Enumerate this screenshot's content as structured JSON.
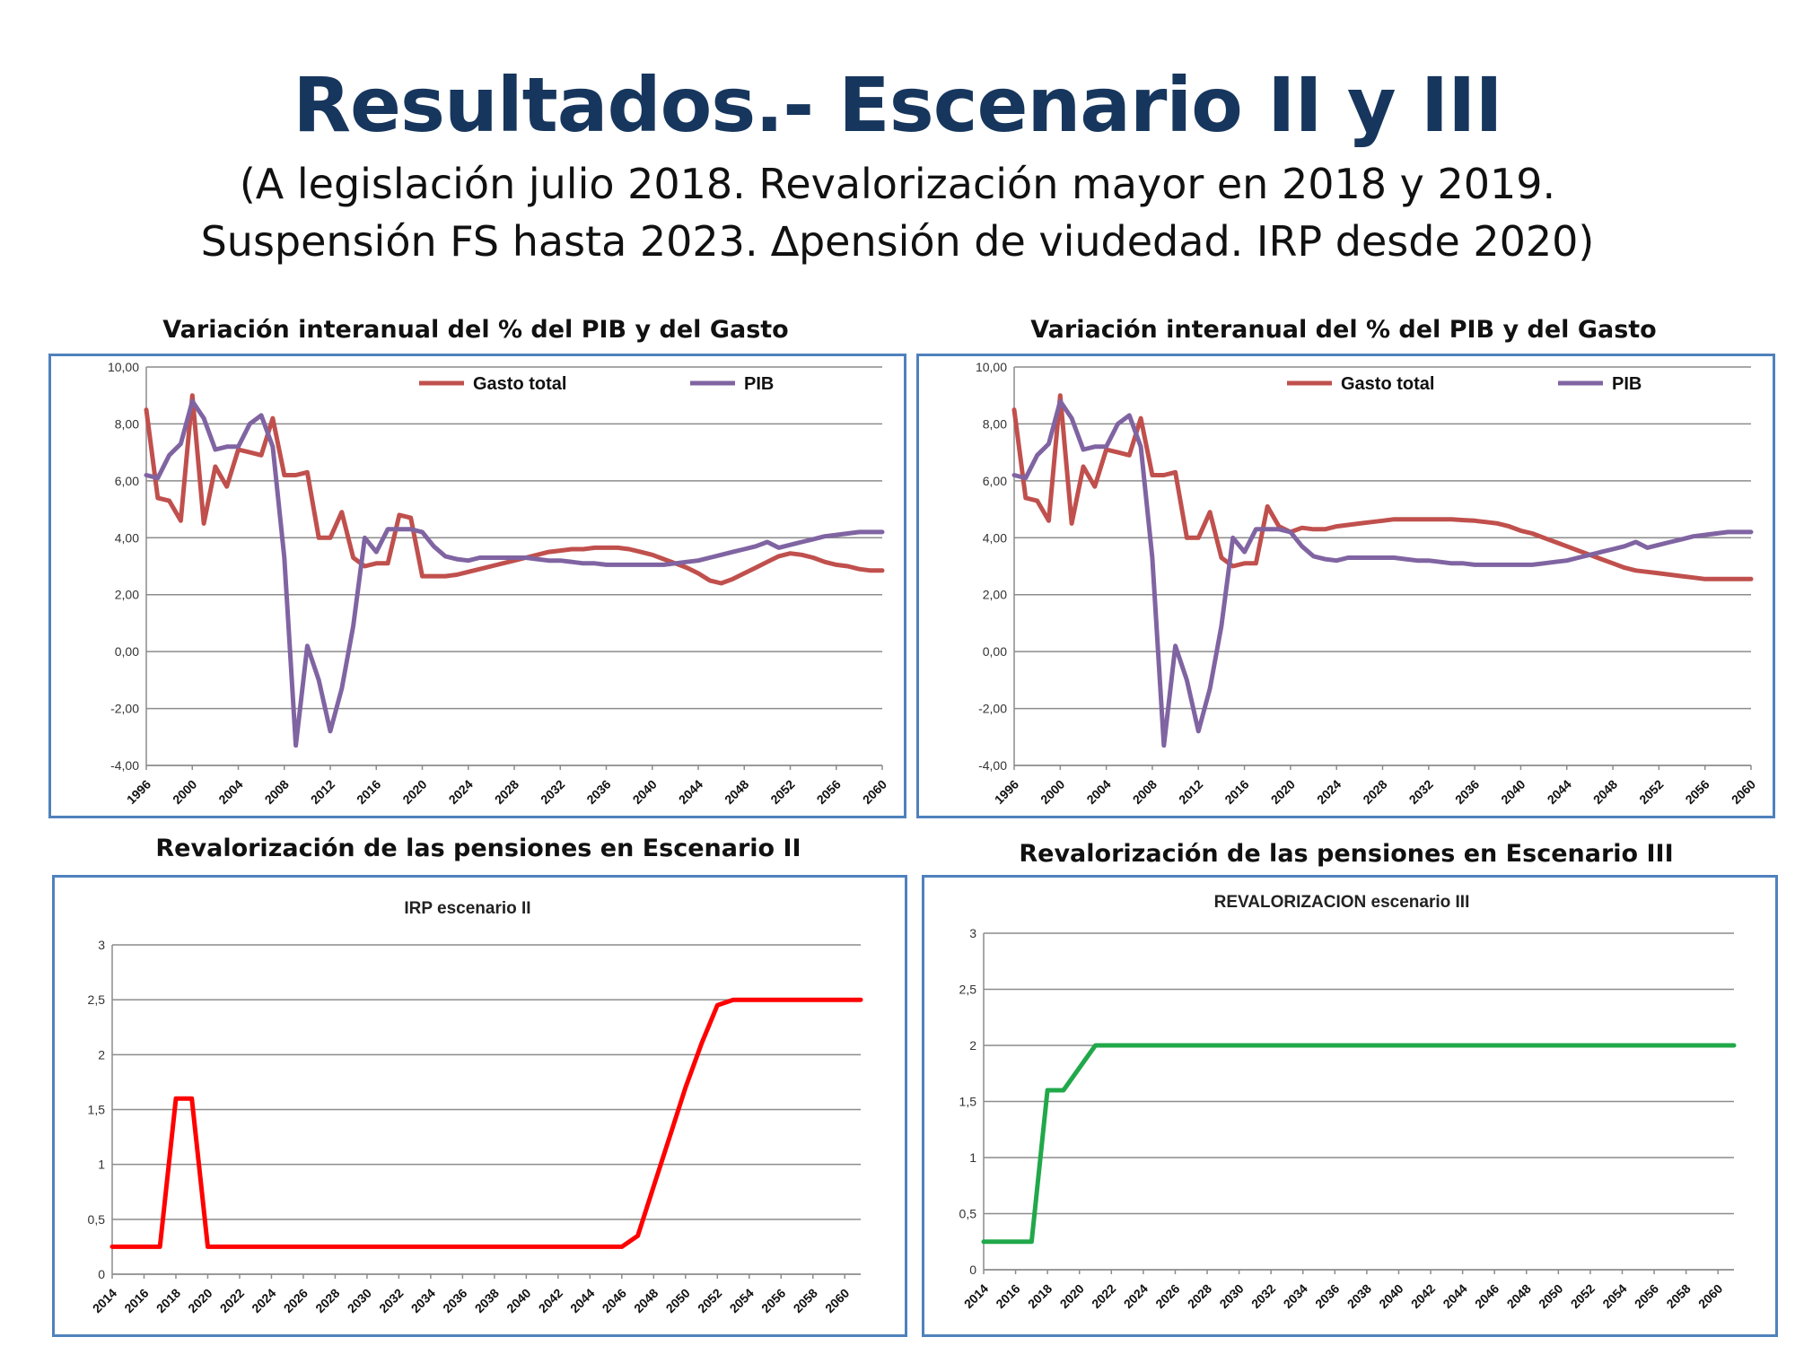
{
  "slide": {
    "title": "Resultados.- Escenario II y III",
    "subtitle_line1": "(A legislación julio 2018. Revalorización mayor en 2018 y 2019.",
    "subtitle_line2": "Suspensión FS hasta 2023. ∆pensión de viudedad. IRP desde 2020)"
  },
  "panels": {
    "tl_title": "Variación interanual del % del PIB y del Gasto",
    "tr_title": "Variación interanual del % del PIB y del Gasto",
    "bl_title": "Revalorización de las pensiones en Escenario II",
    "br_title": "Revalorización de las pensiones en Escenario III"
  },
  "colors": {
    "gasto": "#c0504d",
    "pib": "#8064a2",
    "irp": "#ff0000",
    "reval": "#21a84a",
    "grid": "#8c8c8c",
    "border": "#4f81bd"
  },
  "chart_data": [
    {
      "type": "line",
      "ylim": [
        -4,
        10
      ],
      "yticks": [
        "-4,00",
        "-2,00",
        "0,00",
        "2,00",
        "4,00",
        "6,00",
        "8,00",
        "10,00"
      ],
      "xticks": [
        "1996",
        "2000",
        "2004",
        "2008",
        "2012",
        "2016",
        "2020",
        "2024",
        "2028",
        "2032",
        "2036",
        "2040",
        "2044",
        "2048",
        "2052",
        "2056",
        "2060"
      ],
      "x": [
        1996,
        1997,
        1998,
        1999,
        2000,
        2001,
        2002,
        2003,
        2004,
        2005,
        2006,
        2007,
        2008,
        2009,
        2010,
        2011,
        2012,
        2013,
        2014,
        2015,
        2016,
        2017,
        2018,
        2019,
        2020,
        2021,
        2022,
        2023,
        2024,
        2025,
        2026,
        2027,
        2028,
        2029,
        2030,
        2031,
        2032,
        2033,
        2034,
        2035,
        2036,
        2037,
        2038,
        2039,
        2040,
        2041,
        2042,
        2043,
        2044,
        2045,
        2046,
        2047,
        2048,
        2049,
        2050,
        2051,
        2052,
        2053,
        2054,
        2055,
        2056,
        2057,
        2058,
        2059,
        2060
      ],
      "series": [
        {
          "name": "Gasto total",
          "values": [
            8.5,
            5.4,
            5.3,
            4.6,
            9.0,
            4.5,
            6.5,
            5.8,
            7.1,
            7.0,
            6.9,
            8.2,
            6.2,
            6.2,
            6.3,
            4.0,
            4.0,
            4.9,
            3.3,
            3.0,
            3.1,
            3.1,
            4.8,
            4.7,
            2.65,
            2.65,
            2.65,
            2.7,
            2.8,
            2.9,
            3.0,
            3.1,
            3.2,
            3.3,
            3.4,
            3.5,
            3.55,
            3.6,
            3.6,
            3.65,
            3.65,
            3.65,
            3.6,
            3.5,
            3.4,
            3.25,
            3.1,
            2.95,
            2.75,
            2.5,
            2.4,
            2.55,
            2.75,
            2.95,
            3.15,
            3.35,
            3.45,
            3.4,
            3.3,
            3.15,
            3.05,
            3.0,
            2.9,
            2.85,
            2.85
          ]
        },
        {
          "name": "PIB",
          "values": [
            6.2,
            6.1,
            6.9,
            7.3,
            8.8,
            8.2,
            7.1,
            7.2,
            7.2,
            8.0,
            8.3,
            7.2,
            3.3,
            -3.3,
            0.2,
            -1.0,
            -2.8,
            -1.3,
            0.9,
            4.0,
            3.5,
            4.3,
            4.3,
            4.3,
            4.2,
            3.7,
            3.35,
            3.25,
            3.2,
            3.3,
            3.3,
            3.3,
            3.3,
            3.3,
            3.25,
            3.2,
            3.2,
            3.15,
            3.1,
            3.1,
            3.05,
            3.05,
            3.05,
            3.05,
            3.05,
            3.05,
            3.1,
            3.15,
            3.2,
            3.3,
            3.4,
            3.5,
            3.6,
            3.7,
            3.85,
            3.65,
            3.75,
            3.85,
            3.95,
            4.05,
            4.1,
            4.15,
            4.2,
            4.2,
            4.2
          ]
        }
      ]
    },
    {
      "type": "line",
      "ylim": [
        -4,
        10
      ],
      "yticks": [
        "-4,00",
        "-2,00",
        "0,00",
        "2,00",
        "4,00",
        "6,00",
        "8,00",
        "10,00"
      ],
      "xticks": [
        "1996",
        "2000",
        "2004",
        "2008",
        "2012",
        "2016",
        "2020",
        "2024",
        "2028",
        "2032",
        "2036",
        "2040",
        "2044",
        "2048",
        "2052",
        "2056",
        "2060"
      ],
      "x": [
        1996,
        1997,
        1998,
        1999,
        2000,
        2001,
        2002,
        2003,
        2004,
        2005,
        2006,
        2007,
        2008,
        2009,
        2010,
        2011,
        2012,
        2013,
        2014,
        2015,
        2016,
        2017,
        2018,
        2019,
        2020,
        2021,
        2022,
        2023,
        2024,
        2025,
        2026,
        2027,
        2028,
        2029,
        2030,
        2031,
        2032,
        2033,
        2034,
        2035,
        2036,
        2037,
        2038,
        2039,
        2040,
        2041,
        2042,
        2043,
        2044,
        2045,
        2046,
        2047,
        2048,
        2049,
        2050,
        2051,
        2052,
        2053,
        2054,
        2055,
        2056,
        2057,
        2058,
        2059,
        2060
      ],
      "series": [
        {
          "name": "Gasto total",
          "values": [
            8.5,
            5.4,
            5.3,
            4.6,
            9.0,
            4.5,
            6.5,
            5.8,
            7.1,
            7.0,
            6.9,
            8.2,
            6.2,
            6.2,
            6.3,
            4.0,
            4.0,
            4.9,
            3.3,
            3.0,
            3.1,
            3.1,
            5.1,
            4.4,
            4.2,
            4.35,
            4.3,
            4.3,
            4.4,
            4.45,
            4.5,
            4.55,
            4.6,
            4.65,
            4.65,
            4.65,
            4.65,
            4.65,
            4.65,
            4.62,
            4.6,
            4.55,
            4.5,
            4.4,
            4.25,
            4.15,
            4.0,
            3.85,
            3.7,
            3.55,
            3.4,
            3.25,
            3.1,
            2.95,
            2.85,
            2.8,
            2.75,
            2.7,
            2.65,
            2.6,
            2.55,
            2.55,
            2.55,
            2.55,
            2.55
          ]
        },
        {
          "name": "PIB",
          "values": [
            6.2,
            6.1,
            6.9,
            7.3,
            8.8,
            8.2,
            7.1,
            7.2,
            7.2,
            8.0,
            8.3,
            7.2,
            3.3,
            -3.3,
            0.2,
            -1.0,
            -2.8,
            -1.3,
            0.9,
            4.0,
            3.5,
            4.3,
            4.3,
            4.3,
            4.2,
            3.7,
            3.35,
            3.25,
            3.2,
            3.3,
            3.3,
            3.3,
            3.3,
            3.3,
            3.25,
            3.2,
            3.2,
            3.15,
            3.1,
            3.1,
            3.05,
            3.05,
            3.05,
            3.05,
            3.05,
            3.05,
            3.1,
            3.15,
            3.2,
            3.3,
            3.4,
            3.5,
            3.6,
            3.7,
            3.85,
            3.65,
            3.75,
            3.85,
            3.95,
            4.05,
            4.1,
            4.15,
            4.2,
            4.2,
            4.2
          ]
        }
      ]
    },
    {
      "type": "line",
      "title": "IRP escenario II",
      "ylim": [
        0,
        3
      ],
      "yticks": [
        "0",
        "0,5",
        "1",
        "1,5",
        "2",
        "2,5",
        "3"
      ],
      "xticks": [
        "2014",
        "2016",
        "2018",
        "2020",
        "2022",
        "2024",
        "2026",
        "2028",
        "2030",
        "2032",
        "2034",
        "2036",
        "2038",
        "2040",
        "2042",
        "2044",
        "2046",
        "2048",
        "2050",
        "2052",
        "2054",
        "2056",
        "2058",
        "2060"
      ],
      "x": [
        2014,
        2015,
        2016,
        2017,
        2018,
        2019,
        2020,
        2021,
        2022,
        2023,
        2024,
        2025,
        2026,
        2027,
        2028,
        2029,
        2030,
        2031,
        2032,
        2033,
        2034,
        2035,
        2036,
        2037,
        2038,
        2039,
        2040,
        2041,
        2042,
        2043,
        2044,
        2045,
        2046,
        2047,
        2048,
        2049,
        2050,
        2051,
        2052,
        2053,
        2054,
        2055,
        2056,
        2057,
        2058,
        2059,
        2060,
        2061
      ],
      "series": [
        {
          "name": "IRP",
          "values": [
            0.25,
            0.25,
            0.25,
            0.25,
            1.6,
            1.6,
            0.25,
            0.25,
            0.25,
            0.25,
            0.25,
            0.25,
            0.25,
            0.25,
            0.25,
            0.25,
            0.25,
            0.25,
            0.25,
            0.25,
            0.25,
            0.25,
            0.25,
            0.25,
            0.25,
            0.25,
            0.25,
            0.25,
            0.25,
            0.25,
            0.25,
            0.25,
            0.25,
            0.35,
            0.8,
            1.25,
            1.7,
            2.1,
            2.45,
            2.5,
            2.5,
            2.5,
            2.5,
            2.5,
            2.5,
            2.5,
            2.5,
            2.5
          ]
        }
      ]
    },
    {
      "type": "line",
      "title": "REVALORIZACION escenario  III",
      "ylim": [
        0,
        3
      ],
      "yticks": [
        "0",
        "0,5",
        "1",
        "1,5",
        "2",
        "2,5",
        "3"
      ],
      "xticks": [
        "2014",
        "2016",
        "2018",
        "2020",
        "2022",
        "2024",
        "2026",
        "2028",
        "2030",
        "2032",
        "2034",
        "2036",
        "2038",
        "2040",
        "2042",
        "2044",
        "2046",
        "2048",
        "2050",
        "2052",
        "2054",
        "2056",
        "2058",
        "2060"
      ],
      "x": [
        2014,
        2015,
        2016,
        2017,
        2018,
        2019,
        2020,
        2021,
        2022,
        2023,
        2024,
        2025,
        2026,
        2027,
        2028,
        2029,
        2030,
        2031,
        2032,
        2033,
        2034,
        2035,
        2036,
        2037,
        2038,
        2039,
        2040,
        2041,
        2042,
        2043,
        2044,
        2045,
        2046,
        2047,
        2048,
        2049,
        2050,
        2051,
        2052,
        2053,
        2054,
        2055,
        2056,
        2057,
        2058,
        2059,
        2060,
        2061
      ],
      "series": [
        {
          "name": "Revalorización",
          "values": [
            0.25,
            0.25,
            0.25,
            0.25,
            1.6,
            1.6,
            1.8,
            2.0,
            2.0,
            2.0,
            2.0,
            2.0,
            2.0,
            2.0,
            2.0,
            2.0,
            2.0,
            2.0,
            2.0,
            2.0,
            2.0,
            2.0,
            2.0,
            2.0,
            2.0,
            2.0,
            2.0,
            2.0,
            2.0,
            2.0,
            2.0,
            2.0,
            2.0,
            2.0,
            2.0,
            2.0,
            2.0,
            2.0,
            2.0,
            2.0,
            2.0,
            2.0,
            2.0,
            2.0,
            2.0,
            2.0,
            2.0,
            2.0
          ]
        }
      ]
    }
  ]
}
